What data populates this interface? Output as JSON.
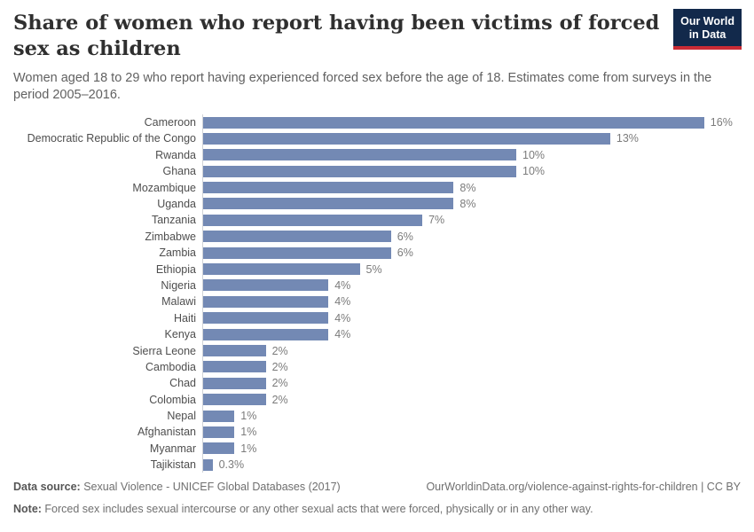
{
  "header": {
    "title": "Share of women who report having been victims of forced sex as children",
    "subtitle": "Women aged 18 to 29 who report having experienced forced sex before the age of 18. Estimates come from surveys in the period 2005–2016.",
    "logo": {
      "line1": "Our World",
      "line2": "in Data"
    }
  },
  "chart_data": {
    "type": "bar",
    "orientation": "horizontal",
    "title": "Share of women who report having been victims of forced sex as children",
    "categories": [
      "Cameroon",
      "Democratic Republic of the Congo",
      "Rwanda",
      "Ghana",
      "Mozambique",
      "Uganda",
      "Tanzania",
      "Zimbabwe",
      "Zambia",
      "Ethiopia",
      "Nigeria",
      "Malawi",
      "Haiti",
      "Kenya",
      "Sierra Leone",
      "Cambodia",
      "Chad",
      "Colombia",
      "Nepal",
      "Afghanistan",
      "Myanmar",
      "Tajikistan"
    ],
    "values": [
      16,
      13,
      10,
      10,
      8,
      8,
      7,
      6,
      6,
      5,
      4,
      4,
      4,
      4,
      2,
      2,
      2,
      2,
      1,
      1,
      1,
      0.3
    ],
    "value_labels": [
      "16%",
      "13%",
      "10%",
      "10%",
      "8%",
      "8%",
      "7%",
      "6%",
      "6%",
      "5%",
      "4%",
      "4%",
      "4%",
      "4%",
      "2%",
      "2%",
      "2%",
      "2%",
      "1%",
      "1%",
      "1%",
      "0.3%"
    ],
    "unit": "%",
    "xlim": [
      0,
      17
    ],
    "grid": false,
    "legend": "none",
    "bar_color": "#7389b4",
    "axis_line_color": "#d0d3d8"
  },
  "colors": {
    "logo_background": "#12294b",
    "logo_accent": "#ca2b35",
    "bar": "#7389b4"
  },
  "footer": {
    "data_source_label": "Data source:",
    "data_source": " Sexual Violence - UNICEF Global Databases (2017)",
    "link": "OurWorldinData.org/violence-against-rights-for-children | CC BY",
    "note_label": "Note:",
    "note": " Forced sex includes sexual intercourse or any other sexual acts that were forced, physically or in any other way."
  }
}
